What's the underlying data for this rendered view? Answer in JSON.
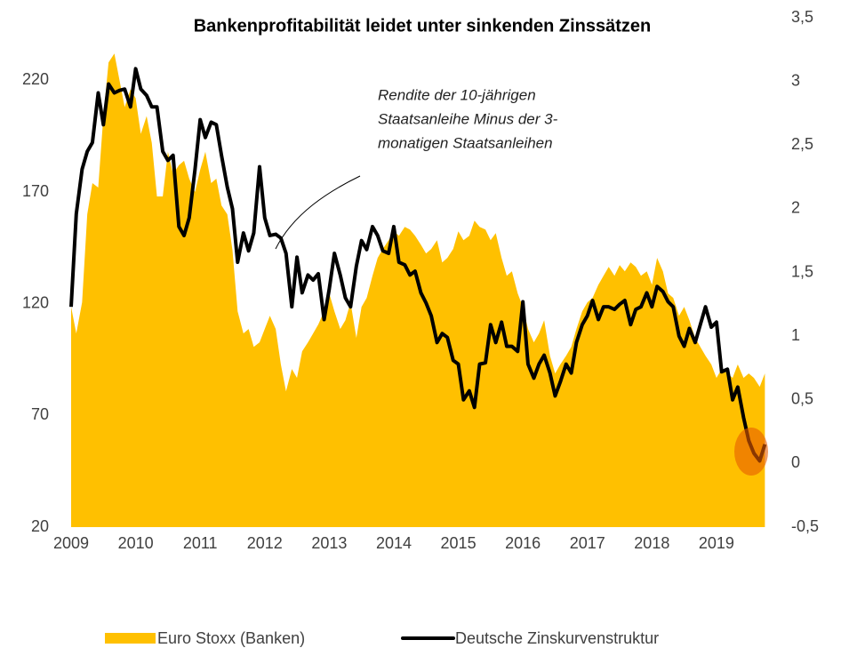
{
  "chart_data": {
    "type": "area-line",
    "title": "Bankenprofitabilität leidet unter sinkenden Zinssätzen",
    "annotation": [
      "Rendite der 10-jährigen",
      "Staatsanleihe Minus der 3-",
      "monatigen Staatsanleihen"
    ],
    "x": [
      2009,
      2009.08,
      2009.17,
      2009.25,
      2009.33,
      2009.42,
      2009.5,
      2009.58,
      2009.67,
      2009.75,
      2009.83,
      2009.92,
      2010,
      2010.08,
      2010.17,
      2010.25,
      2010.33,
      2010.42,
      2010.5,
      2010.58,
      2010.67,
      2010.75,
      2010.83,
      2010.92,
      2011,
      2011.08,
      2011.17,
      2011.25,
      2011.33,
      2011.42,
      2011.5,
      2011.58,
      2011.67,
      2011.75,
      2011.83,
      2011.92,
      2012,
      2012.08,
      2012.17,
      2012.25,
      2012.33,
      2012.42,
      2012.5,
      2012.58,
      2012.67,
      2012.75,
      2012.83,
      2012.92,
      2013,
      2013.08,
      2013.17,
      2013.25,
      2013.33,
      2013.42,
      2013.5,
      2013.58,
      2013.67,
      2013.75,
      2013.83,
      2013.92,
      2014,
      2014.08,
      2014.17,
      2014.25,
      2014.33,
      2014.42,
      2014.5,
      2014.58,
      2014.67,
      2014.75,
      2014.83,
      2014.92,
      2015,
      2015.08,
      2015.17,
      2015.25,
      2015.33,
      2015.42,
      2015.5,
      2015.58,
      2015.67,
      2015.75,
      2015.83,
      2015.92,
      2016,
      2016.08,
      2016.17,
      2016.25,
      2016.33,
      2016.42,
      2016.5,
      2016.58,
      2016.67,
      2016.75,
      2016.83,
      2016.92,
      2017,
      2017.08,
      2017.17,
      2017.25,
      2017.33,
      2017.42,
      2017.5,
      2017.58,
      2017.67,
      2017.75,
      2017.83,
      2017.92,
      2018,
      2018.08,
      2018.17,
      2018.25,
      2018.33,
      2018.42,
      2018.5,
      2018.58,
      2018.67,
      2018.75,
      2018.83,
      2018.92,
      2019,
      2019.08,
      2019.17,
      2019.25,
      2019.33,
      2019.42,
      2019.5,
      2019.58,
      2019.67,
      2019.75
    ],
    "series": [
      {
        "name": "Euro Stoxx (Banken)",
        "color": "#ffc000",
        "kind": "area",
        "values": [
          118.6,
          106.7,
          120.6,
          160,
          174,
          172,
          204,
          228,
          232,
          220,
          208,
          216,
          212,
          196,
          204,
          192,
          168,
          168,
          188,
          178,
          182,
          184,
          176,
          170,
          180,
          188,
          174,
          176,
          164,
          160,
          144,
          116.6,
          106.7,
          108.7,
          100.7,
          102.7,
          108.7,
          114.6,
          108.7,
          92.8,
          80.8,
          90.8,
          86.8,
          98.7,
          102.7,
          106.7,
          110.7,
          116.6,
          124.6,
          116.6,
          108.7,
          112.6,
          120.6,
          104.7,
          118.6,
          122.6,
          132.5,
          140.5,
          144.5,
          148.4,
          152.4,
          150.4,
          154.4,
          153.2,
          150.4,
          146.4,
          142.5,
          144.5,
          148.4,
          138.5,
          140.5,
          144.5,
          152.4,
          148.4,
          150.4,
          157.2,
          154.4,
          153.2,
          148.4,
          151.6,
          140.5,
          132.5,
          134.5,
          124.6,
          118.6,
          108.7,
          102.7,
          106.7,
          112.6,
          96.7,
          88.8,
          92.8,
          96.7,
          100.7,
          108.7,
          116.6,
          120.6,
          122.6,
          128.5,
          132.5,
          136.5,
          132.5,
          137.3,
          134.5,
          138.5,
          136.5,
          132.5,
          134.5,
          128.5,
          140.5,
          134.5,
          124.6,
          122.6,
          114.6,
          118.6,
          112.6,
          104.7,
          100.7,
          96.7,
          92.8,
          86.8,
          90.8,
          88.8,
          86.8,
          92.8,
          86.8,
          88.8,
          86.8,
          82.8,
          88.8
        ]
      },
      {
        "name": "Deutsche Zinskurvenstruktur",
        "color": "#000000",
        "kind": "line",
        "axis": "y2",
        "values": [
          1.23,
          1.96,
          2.31,
          2.45,
          2.52,
          2.91,
          2.66,
          2.98,
          2.91,
          2.93,
          2.94,
          2.8,
          3.1,
          2.94,
          2.89,
          2.8,
          2.8,
          2.45,
          2.38,
          2.42,
          1.86,
          1.79,
          1.93,
          2.31,
          2.7,
          2.56,
          2.68,
          2.66,
          2.42,
          2.17,
          2.0,
          1.58,
          1.81,
          1.67,
          1.81,
          2.33,
          1.93,
          1.79,
          1.8,
          1.77,
          1.65,
          1.23,
          1.62,
          1.34,
          1.48,
          1.44,
          1.49,
          1.13,
          1.37,
          1.65,
          1.48,
          1.3,
          1.23,
          1.55,
          1.75,
          1.68,
          1.86,
          1.79,
          1.67,
          1.65,
          1.86,
          1.58,
          1.56,
          1.48,
          1.51,
          1.34,
          1.26,
          1.16,
          0.95,
          1.02,
          0.99,
          0.81,
          0.78,
          0.5,
          0.57,
          0.44,
          0.78,
          0.79,
          1.09,
          0.95,
          1.11,
          0.92,
          0.92,
          0.88,
          1.27,
          0.78,
          0.67,
          0.78,
          0.85,
          0.71,
          0.53,
          0.64,
          0.78,
          0.71,
          0.95,
          1.09,
          1.16,
          1.28,
          1.13,
          1.23,
          1.23,
          1.21,
          1.25,
          1.28,
          1.09,
          1.21,
          1.23,
          1.34,
          1.23,
          1.39,
          1.35,
          1.27,
          1.23,
          1.0,
          0.92,
          1.06,
          0.95,
          1.09,
          1.23,
          1.07,
          1.11,
          0.72,
          0.74,
          0.5,
          0.6,
          0.36,
          0.18,
          0.08,
          0.02,
          0.15
        ]
      }
    ],
    "xlim": [
      2009,
      2019.8
    ],
    "xticks": [
      2009,
      2010,
      2011,
      2012,
      2013,
      2014,
      2015,
      2016,
      2017,
      2018,
      2019
    ],
    "ylim": [
      20,
      248
    ],
    "yticks": [
      20,
      70,
      120,
      170,
      220
    ],
    "y2lim": [
      -0.5,
      3.5
    ],
    "y2ticks": [
      {
        "value": -0.5,
        "label": "-0,5"
      },
      0,
      {
        "value": 0.5,
        "label": "0,5"
      },
      1,
      {
        "value": 1.5,
        "label": "1,5"
      },
      2,
      {
        "value": 2.5,
        "label": "2,5"
      },
      3,
      {
        "value": 3.5,
        "label": "3,5"
      }
    ],
    "grid": false,
    "legend": "bottom"
  }
}
